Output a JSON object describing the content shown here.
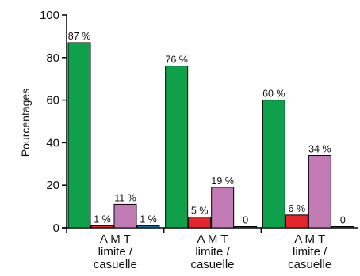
{
  "chart_data": {
    "type": "bar",
    "ylabel": "Pourcentages",
    "ylim": [
      0,
      100
    ],
    "yticks": [
      "0",
      "20",
      "40",
      "60",
      "80",
      "100"
    ],
    "categories": [
      [
        "A M T",
        "limite /",
        "casuelle"
      ],
      [
        "A M T",
        "limite /",
        "casuelle"
      ],
      [
        "A M T",
        "limite /",
        "casuelle"
      ]
    ],
    "series": [
      {
        "color": "#0fa04b",
        "values": [
          87,
          76,
          60
        ],
        "labels": [
          "87 %",
          "76 %",
          "60 %"
        ]
      },
      {
        "color": "#e3262c",
        "values": [
          1,
          5,
          6
        ],
        "labels": [
          "1 %",
          "5 %",
          "6 %"
        ]
      },
      {
        "color": "#c27bb5",
        "values": [
          11,
          19,
          34
        ],
        "labels": [
          "11 %",
          "19 %",
          "34 %"
        ]
      },
      {
        "color": "#1a6fa0",
        "values": [
          1,
          0,
          0
        ],
        "labels": [
          "1 %",
          "0",
          "0"
        ]
      }
    ],
    "grid": false,
    "legend": "none"
  }
}
